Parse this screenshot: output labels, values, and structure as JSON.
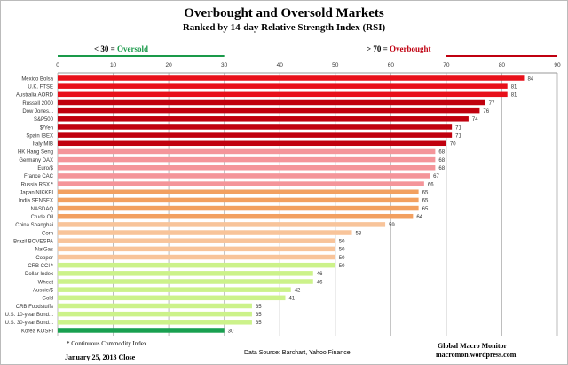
{
  "chart_data": {
    "type": "bar",
    "orientation": "horizontal",
    "title": "Overbought and Oversold Markets",
    "subtitle": "Ranked by 14-day Relative Strength Index (RSI)",
    "xlim": [
      0,
      90
    ],
    "xticks": [
      0,
      10,
      20,
      30,
      40,
      50,
      60,
      70,
      80,
      90
    ],
    "grid": true,
    "oversold": {
      "prefix": "< 30 = ",
      "label": "Oversold",
      "color": "#1a9a4a"
    },
    "overbought": {
      "prefix": "> 70 = ",
      "label": "Overbought",
      "color": "#c00010"
    },
    "categories": [
      "Mexico Bolsa",
      "U.K. FTSE",
      "Australia AORD",
      "Russell 2000",
      "Dow Jones...",
      "S&P500",
      "$/Yen",
      "Spain IBEX",
      "Italy  MIB",
      "HK  Hang Seng",
      "Germany DAX",
      "Euro/$",
      "France CAC",
      "Russia RSX *",
      "Japan NIKKEI",
      "India SENSEX",
      "NASDAQ",
      "Crude Oil",
      "China Shanghai",
      "Corn",
      "Brazil BOVESPA",
      "NatGas",
      "Copper",
      "CRB CCI *",
      "Dollar Index",
      "Wheat",
      "Aussie/$",
      "Gold",
      "CRB Foodstuffs",
      "U.S. 10-year Bond...",
      "U.S. 30-year Bond...",
      "Korea KOSPI"
    ],
    "values": [
      84,
      81,
      81,
      77,
      76,
      74,
      71,
      71,
      70,
      68,
      68,
      68,
      67,
      66,
      65,
      65,
      65,
      64,
      59,
      53,
      50,
      50,
      50,
      50,
      46,
      46,
      42,
      41,
      35,
      35,
      35,
      30
    ],
    "bar_colors": [
      "#e8101a",
      "#e8101a",
      "#e8101a",
      "#c0000e",
      "#c0000e",
      "#c0000e",
      "#c0000e",
      "#c0000e",
      "#c0000e",
      "#f4959a",
      "#f4959a",
      "#f4959a",
      "#f4959a",
      "#f4959a",
      "#f2a060",
      "#f2a060",
      "#f2a060",
      "#f2a060",
      "#f8c49a",
      "#f8c49a",
      "#f8c49a",
      "#f8c49a",
      "#f8c49a",
      "#ccf28a",
      "#ccf28a",
      "#ccf28a",
      "#ccf28a",
      "#ccf28a",
      "#ccf28a",
      "#ccf28a",
      "#ccf28a",
      "#18a050"
    ]
  },
  "footnote": "* Continuous Commodity Index",
  "date": "January 25, 2013  Close",
  "source": "Data Source:  Barchart,  Yahoo Finance",
  "brand": "Global Macro Monitor",
  "site": "macromon.wordpress.com"
}
